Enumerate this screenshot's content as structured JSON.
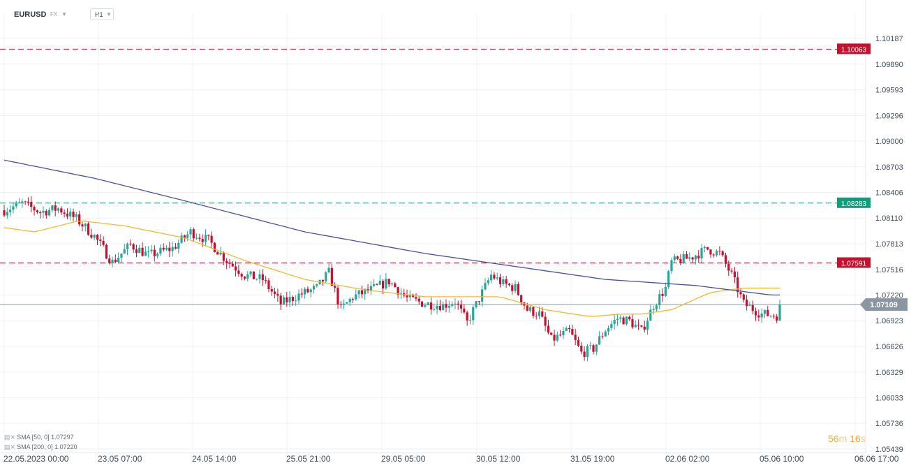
{
  "header": {
    "symbol": "EURUSD",
    "market": "FX",
    "timeframe": "H1"
  },
  "legend": [
    {
      "label": "SMA [50, 0] 1.07297",
      "color": "#f5b731"
    },
    {
      "label": "SMA [200, 0] 1.07220",
      "color": "#4b4fa0"
    }
  ],
  "timer": {
    "minutes": "56",
    "m_unit": "m",
    "seconds": "16",
    "s_unit": "s"
  },
  "colors": {
    "up": "#26a69a",
    "down": "#c8102e",
    "sma50": "#f5b731",
    "sma200": "#4b4fa0",
    "resistance": "#c8102e",
    "support": "#0e9f7a",
    "price": "#8c9aa6"
  },
  "chart_data": {
    "type": "candlestick",
    "symbol": "EURUSD",
    "timeframe": "H1",
    "ylim": [
      1.05439,
      1.10336
    ],
    "y_ticks": [
      "1.10187",
      "1.09890",
      "1.09593",
      "1.09296",
      "1.09000",
      "1.08703",
      "1.08406",
      "1.08110",
      "1.07813",
      "1.07516",
      "1.07220",
      "1.06923",
      "1.06626",
      "1.06329",
      "1.06033",
      "1.05736",
      "1.05439"
    ],
    "x_ticks": [
      "22.05.2023 00:00",
      "23.05 07:00",
      "24.05 14:00",
      "25.05 21:00",
      "29.05 05:00",
      "30.05 12:00",
      "31.05 19:00",
      "02.06 02:00",
      "05.06 10:00",
      "06.06 17:00"
    ],
    "horizontal_lines": [
      {
        "label": "1.10063",
        "value": 1.10063,
        "style": "dashed",
        "color": "#c8102e"
      },
      {
        "label": "1.08283",
        "value": 1.08283,
        "style": "dashed",
        "color": "#0e9f7a"
      },
      {
        "label": "1.07591",
        "value": 1.07591,
        "style": "dashed",
        "color": "#c8102e"
      }
    ],
    "current_price": {
      "label": "1.07109",
      "value": 1.07109
    },
    "close_path": [
      [
        0,
        1.082
      ],
      [
        6,
        1.0828
      ],
      [
        12,
        1.0818
      ],
      [
        18,
        1.0822
      ],
      [
        24,
        1.081
      ],
      [
        30,
        1.079
      ],
      [
        36,
        1.076
      ],
      [
        42,
        1.078
      ],
      [
        48,
        1.0768
      ],
      [
        56,
        1.0776
      ],
      [
        62,
        1.0795
      ],
      [
        68,
        1.0785
      ],
      [
        74,
        1.0762
      ],
      [
        80,
        1.0745
      ],
      [
        86,
        1.074
      ],
      [
        92,
        1.0712
      ],
      [
        98,
        1.0722
      ],
      [
        104,
        1.073
      ],
      [
        108,
        1.0748
      ],
      [
        112,
        1.0705
      ],
      [
        116,
        1.072
      ],
      [
        122,
        1.0728
      ],
      [
        128,
        1.0738
      ],
      [
        134,
        1.0718
      ],
      [
        140,
        1.0712
      ],
      [
        146,
        1.071
      ],
      [
        150,
        1.0715
      ],
      [
        154,
        1.069
      ],
      [
        158,
        1.0718
      ],
      [
        162,
        1.0745
      ],
      [
        166,
        1.0735
      ],
      [
        170,
        1.073
      ],
      [
        174,
        1.0705
      ],
      [
        178,
        1.07
      ],
      [
        182,
        1.067
      ],
      [
        188,
        1.068
      ],
      [
        192,
        1.0655
      ],
      [
        196,
        1.066
      ],
      [
        200,
        1.0682
      ],
      [
        204,
        1.0695
      ],
      [
        208,
        1.0692
      ],
      [
        212,
        1.068
      ],
      [
        216,
        1.071
      ],
      [
        220,
        1.073
      ],
      [
        222,
        1.076
      ],
      [
        228,
        1.0765
      ],
      [
        234,
        1.0775
      ],
      [
        238,
        1.077
      ],
      [
        242,
        1.0745
      ],
      [
        246,
        1.0712
      ],
      [
        252,
        1.07
      ],
      [
        258,
        1.0698
      ],
      [
        262,
        1.0688
      ]
    ],
    "sma50_path": [
      [
        0,
        1.08
      ],
      [
        10,
        1.0795
      ],
      [
        16,
        1.08
      ],
      [
        25,
        1.0808
      ],
      [
        40,
        1.0802
      ],
      [
        60,
        1.0788
      ],
      [
        80,
        1.0762
      ],
      [
        100,
        1.074
      ],
      [
        120,
        1.0728
      ],
      [
        140,
        1.072
      ],
      [
        165,
        1.072
      ],
      [
        180,
        1.0705
      ],
      [
        195,
        1.0697
      ],
      [
        205,
        1.07
      ],
      [
        212,
        1.07
      ],
      [
        222,
        1.0705
      ],
      [
        235,
        1.0725
      ],
      [
        246,
        1.073
      ],
      [
        255,
        1.073
      ]
    ],
    "sma200_path": [
      [
        0,
        1.0878
      ],
      [
        30,
        1.0857
      ],
      [
        60,
        1.0831
      ],
      [
        100,
        1.0795
      ],
      [
        140,
        1.077
      ],
      [
        170,
        1.0755
      ],
      [
        200,
        1.074
      ],
      [
        230,
        1.0733
      ],
      [
        255,
        1.0722
      ]
    ]
  }
}
